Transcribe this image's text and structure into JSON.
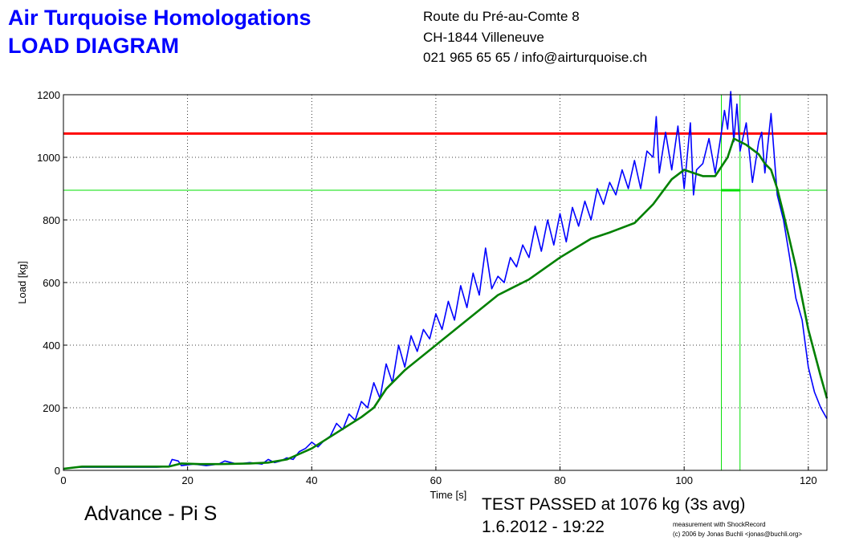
{
  "header": {
    "title_line1": "Air Turquoise Homologations",
    "title_line2": "LOAD DIAGRAM",
    "address_line1": "Route du Pré-au-Comte 8",
    "address_line2": "CH-1844 Villeneuve",
    "address_line3": "021 965 65 65 / info@airturquoise.ch"
  },
  "footer": {
    "product": "Advance - Pi S",
    "result": "TEST PASSED at 1076 kg (3s avg)",
    "date": "1.6.2012 - 19:22",
    "credit_line1": "measurement with ShockRecord",
    "credit_line2": "(c) 2006 by Jonas Buchli <jonas@buchli.org>"
  },
  "colors": {
    "raw": "#0000ff",
    "avg": "#008000",
    "limit": "#ff0000",
    "marker": "#00e000",
    "title": "#0000ff"
  },
  "chart_data": {
    "type": "line",
    "xlabel": "Time [s]",
    "ylabel": "Load [kg]",
    "xlim": [
      0,
      123
    ],
    "ylim": [
      0,
      1200
    ],
    "xticks": [
      0,
      20,
      40,
      60,
      80,
      100,
      120
    ],
    "yticks": [
      0,
      200,
      400,
      600,
      800,
      1000,
      1200
    ],
    "grid": true,
    "reference_lines": {
      "limit_load": 1076,
      "window_load": 895,
      "window_start": 106,
      "window_end": 109
    },
    "series": [
      {
        "role": "raw",
        "x": [
          0,
          2,
          5,
          10,
          15,
          17,
          17.5,
          18.5,
          19,
          21,
          23,
          25,
          26,
          28,
          30,
          32,
          33,
          34,
          35,
          36,
          37,
          38,
          39,
          40,
          41,
          42,
          43,
          44,
          45,
          46,
          47,
          48,
          49,
          50,
          51,
          52,
          53,
          54,
          55,
          56,
          57,
          58,
          59,
          60,
          61,
          62,
          63,
          64,
          65,
          66,
          67,
          68,
          69,
          70,
          71,
          72,
          73,
          74,
          75,
          76,
          77,
          78,
          79,
          80,
          81,
          82,
          83,
          84,
          85,
          86,
          87,
          88,
          89,
          90,
          91,
          92,
          93,
          94,
          95,
          95.5,
          96,
          97,
          98,
          99,
          100,
          101,
          101.5,
          102,
          103,
          104,
          105,
          106,
          106.5,
          107,
          107.5,
          108,
          108.5,
          109,
          110,
          111,
          112,
          112.5,
          113,
          114,
          115,
          116,
          117,
          118,
          119,
          120,
          121,
          122,
          123
        ],
        "y": [
          5,
          10,
          10,
          10,
          10,
          12,
          35,
          30,
          15,
          20,
          15,
          20,
          30,
          20,
          25,
          20,
          35,
          25,
          30,
          40,
          35,
          60,
          70,
          90,
          75,
          95,
          110,
          150,
          130,
          180,
          160,
          220,
          200,
          280,
          230,
          340,
          280,
          400,
          330,
          430,
          380,
          450,
          420,
          500,
          450,
          540,
          480,
          590,
          520,
          630,
          560,
          710,
          580,
          620,
          600,
          680,
          650,
          720,
          680,
          780,
          700,
          800,
          720,
          820,
          730,
          840,
          780,
          860,
          800,
          900,
          850,
          920,
          880,
          960,
          900,
          990,
          900,
          1020,
          1000,
          1130,
          950,
          1080,
          960,
          1100,
          900,
          1110,
          880,
          960,
          980,
          1060,
          950,
          1080,
          1150,
          1090,
          1210,
          1050,
          1170,
          1020,
          1110,
          920,
          1050,
          1080,
          950,
          1140,
          880,
          800,
          680,
          550,
          480,
          330,
          250,
          200,
          165
        ]
      },
      {
        "role": "avg",
        "x": [
          0,
          3,
          10,
          17,
          19,
          22,
          25,
          30,
          33,
          36,
          40,
          44,
          48,
          50,
          52,
          55,
          60,
          65,
          70,
          75,
          80,
          85,
          88,
          92,
          95,
          98,
          100,
          103,
          105,
          107,
          108,
          110,
          112,
          113,
          114,
          115,
          116,
          118,
          120,
          122,
          123
        ],
        "y": [
          5,
          12,
          12,
          12,
          22,
          20,
          20,
          22,
          25,
          35,
          70,
          120,
          170,
          200,
          260,
          320,
          400,
          480,
          560,
          610,
          680,
          740,
          760,
          790,
          850,
          930,
          960,
          940,
          940,
          1000,
          1060,
          1040,
          1010,
          980,
          960,
          900,
          820,
          650,
          450,
          300,
          230
        ]
      }
    ]
  }
}
